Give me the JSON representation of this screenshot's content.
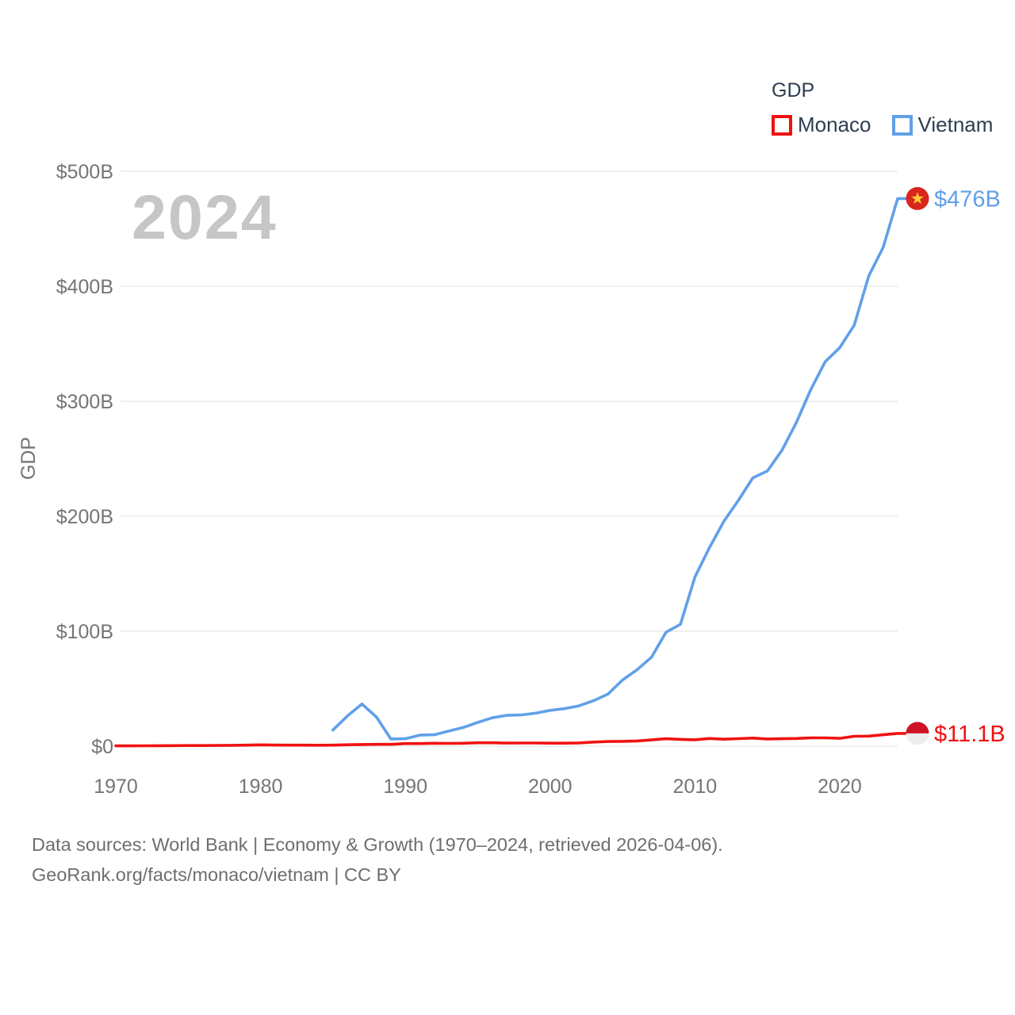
{
  "legend": {
    "title": "GDP",
    "items": [
      {
        "label": "Monaco",
        "color": "#f01212"
      },
      {
        "label": "Vietnam",
        "color": "#61a0e8"
      }
    ]
  },
  "watermark": "2024",
  "y_axis": {
    "label": "GDP",
    "tick_labels": [
      "$0",
      "$100B",
      "$200B",
      "$300B",
      "$400B",
      "$500B"
    ],
    "tick_values": [
      0,
      100,
      200,
      300,
      400,
      500
    ]
  },
  "x_axis": {
    "tick_labels": [
      "1970",
      "1980",
      "1990",
      "2000",
      "2010",
      "2020"
    ],
    "tick_values": [
      1970,
      1980,
      1990,
      2000,
      2010,
      2020
    ]
  },
  "end_labels": [
    {
      "series": "Vietnam",
      "text": "$476B",
      "flag": "vietnam",
      "color": "#61a0e8"
    },
    {
      "series": "Monaco",
      "text": "$11.1B",
      "flag": "monaco",
      "color": "#ee1111"
    }
  ],
  "footer": {
    "line1": "Data sources: World Bank | Economy & Growth (1970–2024, retrieved 2026-04-06).",
    "line2": "GeoRank.org/facts/monaco/vietnam | CC BY"
  },
  "colors": {
    "grid": "#ececec",
    "tick_text": "#757575",
    "axis_label": "#757575",
    "legend_text": "#2c3e50",
    "watermark": "#c6c6c6",
    "vietnam_flag_red": "#da251d",
    "vietnam_flag_star": "#ffce31",
    "monaco_flag_red": "#ce1126",
    "monaco_flag_white": "#ededed"
  },
  "chart_data": {
    "type": "line",
    "title": "GDP",
    "xlabel": "",
    "ylabel": "GDP",
    "xlim": [
      1970,
      2024
    ],
    "ylim": [
      0,
      500
    ],
    "grid": true,
    "legend_position": "top-right",
    "x": [
      1970,
      1971,
      1972,
      1973,
      1974,
      1975,
      1976,
      1977,
      1978,
      1979,
      1980,
      1981,
      1982,
      1983,
      1984,
      1985,
      1986,
      1987,
      1988,
      1989,
      1990,
      1991,
      1992,
      1993,
      1994,
      1995,
      1996,
      1997,
      1998,
      1999,
      2000,
      2001,
      2002,
      2003,
      2004,
      2005,
      2006,
      2007,
      2008,
      2009,
      2010,
      2011,
      2012,
      2013,
      2014,
      2015,
      2016,
      2017,
      2018,
      2019,
      2020,
      2021,
      2022,
      2023,
      2024
    ],
    "series": [
      {
        "name": "Monaco",
        "color": "#f01212",
        "end_value_label": "$11.1B",
        "values": [
          0.25,
          0.28,
          0.34,
          0.43,
          0.45,
          0.55,
          0.55,
          0.6,
          0.73,
          0.88,
          1.16,
          0.98,
          0.93,
          0.89,
          0.84,
          0.87,
          1.21,
          1.46,
          1.61,
          1.62,
          2.3,
          2.3,
          2.54,
          2.42,
          2.55,
          2.94,
          2.95,
          2.68,
          2.77,
          2.79,
          2.65,
          2.62,
          2.85,
          3.58,
          4.07,
          4.2,
          4.58,
          5.47,
          6.48,
          5.93,
          5.62,
          6.66,
          6.07,
          6.55,
          7.06,
          6.26,
          6.47,
          6.66,
          7.21,
          7.22,
          6.82,
          8.6,
          8.77,
          9.95,
          11.1
        ]
      },
      {
        "name": "Vietnam",
        "color": "#61a0e8",
        "end_value_label": "$476B",
        "values": [
          null,
          null,
          null,
          null,
          null,
          null,
          null,
          null,
          null,
          null,
          null,
          null,
          null,
          null,
          null,
          14.1,
          26.3,
          36.7,
          25.4,
          6.3,
          6.5,
          9.6,
          9.9,
          13.2,
          16.3,
          20.7,
          24.7,
          26.8,
          27.2,
          28.7,
          31.2,
          32.7,
          35.1,
          39.6,
          45.4,
          57.6,
          66.4,
          77.4,
          99.1,
          106.0,
          147.2,
          172.6,
          195.6,
          213.7,
          233.4,
          239.3,
          257.1,
          281.4,
          310.1,
          334.4,
          346.6,
          366.1,
          408.8,
          433.7,
          476.3
        ]
      }
    ]
  }
}
